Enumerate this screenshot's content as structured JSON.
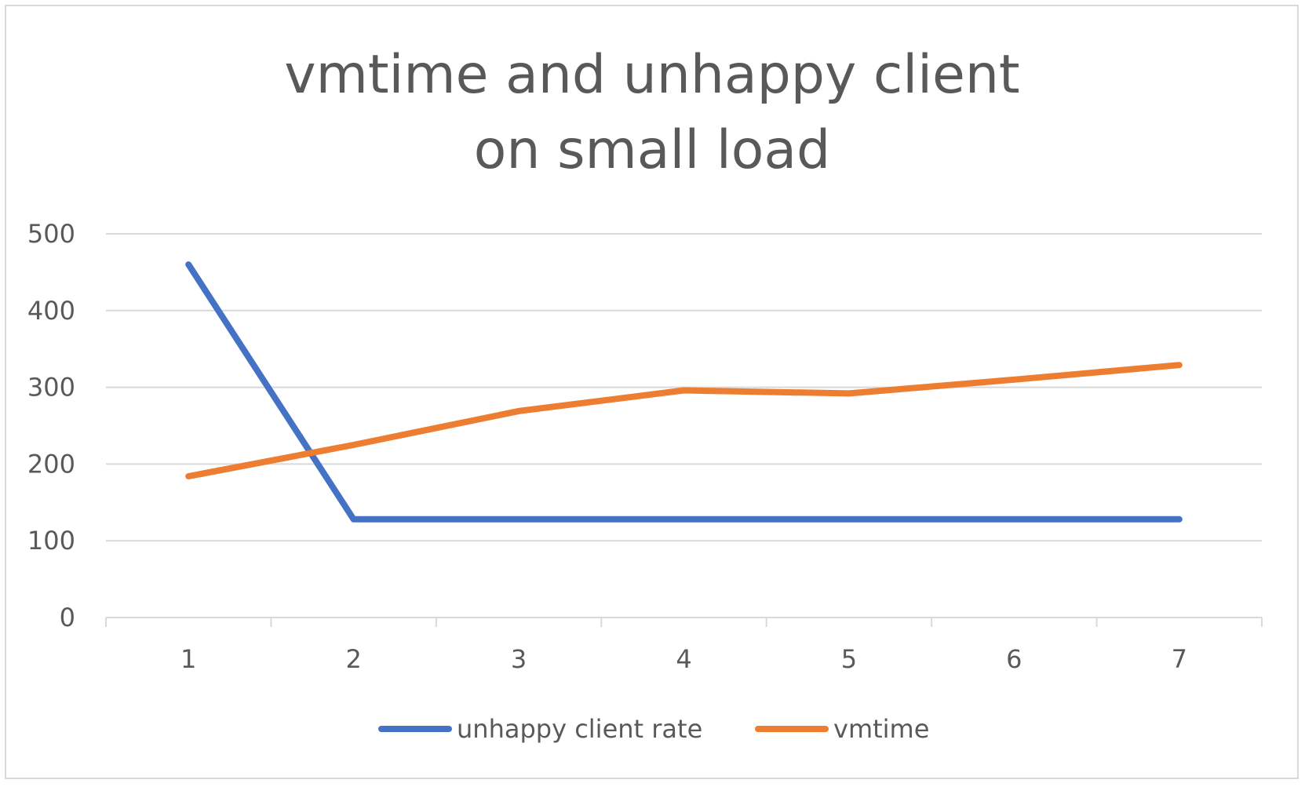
{
  "chart_data": {
    "type": "line",
    "title_lines": [
      "vmtime and unhappy client",
      "on small load"
    ],
    "xlabel": "",
    "ylabel": "",
    "categories": [
      "1",
      "2",
      "3",
      "4",
      "5",
      "6",
      "7"
    ],
    "ylim": [
      0,
      500
    ],
    "y_ticks": [
      "0",
      "100",
      "200",
      "300",
      "400",
      "500"
    ],
    "grid": true,
    "legend_position": "bottom",
    "series": [
      {
        "name": "unhappy client rate",
        "color": "#4472c4",
        "values": [
          460,
          128,
          128,
          128,
          128,
          128,
          128
        ]
      },
      {
        "name": "vmtime",
        "color": "#ed7d31",
        "values": [
          184,
          225,
          269,
          296,
          292,
          310,
          329
        ]
      }
    ]
  }
}
